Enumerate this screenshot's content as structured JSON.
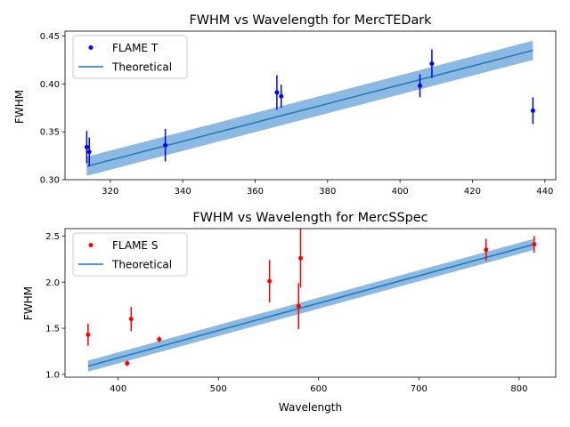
{
  "colors": {
    "band": "#5b9bd5",
    "theory_line": "#1f77b4",
    "flame_t": "#0000ff",
    "flame_s": "#ff0000"
  },
  "chart_data": [
    {
      "type": "scatter",
      "title": "FWHM vs Wavelength for MercTEDark",
      "xlabel": "",
      "ylabel": "FWHM",
      "xlim": [
        307.5,
        443.0
      ],
      "ylim": [
        0.3,
        0.455
      ],
      "xticks": [
        320,
        340,
        360,
        380,
        400,
        420,
        440
      ],
      "yticks": [
        0.3,
        0.35,
        0.4,
        0.45
      ],
      "xtick_labels": [
        "320",
        "340",
        "360",
        "380",
        "400",
        "420",
        "440"
      ],
      "ytick_labels": [
        "0.30",
        "0.35",
        "0.40",
        "0.45"
      ],
      "legend_placement": "top-left",
      "series": [
        {
          "name": "FLAME T",
          "kind": "errorbar",
          "color": "#0000ff",
          "points": [
            {
              "x": 313.5,
              "y": 0.334,
              "err": 0.017
            },
            {
              "x": 314.2,
              "y": 0.329,
              "err": 0.015
            },
            {
              "x": 335.2,
              "y": 0.336,
              "err": 0.017
            },
            {
              "x": 366.0,
              "y": 0.391,
              "err": 0.018
            },
            {
              "x": 367.2,
              "y": 0.387,
              "err": 0.012
            },
            {
              "x": 405.5,
              "y": 0.398,
              "err": 0.012
            },
            {
              "x": 408.8,
              "y": 0.421,
              "err": 0.015
            },
            {
              "x": 436.7,
              "y": 0.372,
              "err": 0.014
            }
          ]
        },
        {
          "name": "Theoretical",
          "kind": "line_band",
          "color": "#1f77b4",
          "x": [
            313.5,
            436.7
          ],
          "y": [
            0.314,
            0.435
          ],
          "band": 0.01
        }
      ]
    },
    {
      "type": "scatter",
      "title": "FWHM vs Wavelength for MercSSpec",
      "xlabel": "Wavelength",
      "ylabel": "FWHM",
      "xlim": [
        347.0,
        836.5
      ],
      "ylim": [
        0.97,
        2.58
      ],
      "xticks": [
        400,
        500,
        600,
        700,
        800
      ],
      "yticks": [
        1.0,
        1.5,
        2.0,
        2.5
      ],
      "xtick_labels": [
        "400",
        "500",
        "600",
        "700",
        "800"
      ],
      "ytick_labels": [
        "1.0",
        "1.5",
        "2.0",
        "2.5"
      ],
      "legend_placement": "top-left",
      "series": [
        {
          "name": "FLAME S",
          "kind": "errorbar",
          "color": "#ff0000",
          "points": [
            {
              "x": 370.0,
              "y": 1.43,
              "err": 0.12
            },
            {
              "x": 409.0,
              "y": 1.12,
              "err": 0.03
            },
            {
              "x": 413.0,
              "y": 1.6,
              "err": 0.13
            },
            {
              "x": 441.0,
              "y": 1.38,
              "err": 0.03
            },
            {
              "x": 551.0,
              "y": 2.01,
              "err": 0.23
            },
            {
              "x": 580.0,
              "y": 1.74,
              "err": 0.25
            },
            {
              "x": 582.0,
              "y": 2.26,
              "err": 0.32
            },
            {
              "x": 767.0,
              "y": 2.35,
              "err": 0.12
            },
            {
              "x": 815.0,
              "y": 2.41,
              "err": 0.09
            }
          ]
        },
        {
          "name": "Theoretical",
          "kind": "line_band",
          "color": "#1f77b4",
          "x": [
            370.0,
            815.0
          ],
          "y": [
            1.09,
            2.41
          ],
          "band": 0.06
        }
      ]
    }
  ]
}
